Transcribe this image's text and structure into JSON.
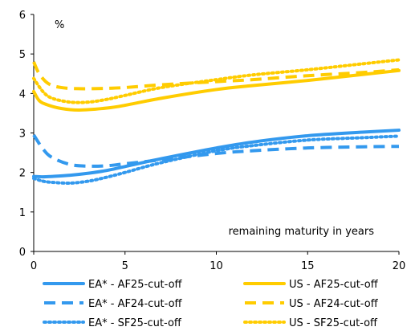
{
  "chart_data": {
    "type": "line",
    "y_unit_label": "%",
    "x_annotation": "remaining maturity in years",
    "xlim": [
      0,
      20
    ],
    "ylim": [
      0,
      6
    ],
    "x_ticks": [
      0,
      5,
      10,
      15,
      20
    ],
    "y_ticks": [
      0,
      1,
      2,
      3,
      4,
      5,
      6
    ],
    "grid": false,
    "legend_position": "bottom",
    "series": [
      {
        "name": "EA* - AF25-cut-off",
        "color": "#3399ee",
        "dash": "solid",
        "x": [
          0,
          0.5,
          1,
          2,
          3,
          4,
          5,
          7,
          10,
          12,
          15,
          18,
          20
        ],
        "y": [
          1.9,
          1.89,
          1.9,
          1.93,
          1.98,
          2.05,
          2.15,
          2.35,
          2.62,
          2.77,
          2.93,
          3.02,
          3.07
        ]
      },
      {
        "name": "EA* - AF24-cut-off",
        "color": "#3399ee",
        "dash": "dashed",
        "x": [
          0,
          0.5,
          1,
          2,
          3,
          4,
          5,
          7,
          10,
          12,
          15,
          18,
          20
        ],
        "y": [
          2.95,
          2.6,
          2.38,
          2.2,
          2.16,
          2.17,
          2.22,
          2.32,
          2.48,
          2.55,
          2.62,
          2.65,
          2.66
        ]
      },
      {
        "name": "EA* - SF25-cut-off",
        "color": "#3399ee",
        "dash": "dotted",
        "x": [
          0,
          0.5,
          1,
          2,
          3,
          4,
          5,
          7,
          10,
          12,
          15,
          18,
          20
        ],
        "y": [
          1.85,
          1.78,
          1.75,
          1.73,
          1.78,
          1.88,
          2.0,
          2.25,
          2.55,
          2.68,
          2.82,
          2.88,
          2.92
        ]
      },
      {
        "name": "US - AF25-cut-off",
        "color": "#ffcc00",
        "dash": "solid",
        "x": [
          0,
          0.3,
          0.7,
          1.5,
          2.5,
          4,
          5,
          7,
          10,
          12,
          15,
          18,
          20
        ],
        "y": [
          4.05,
          3.82,
          3.72,
          3.62,
          3.58,
          3.63,
          3.7,
          3.88,
          4.1,
          4.2,
          4.33,
          4.48,
          4.58
        ]
      },
      {
        "name": "US - AF24-cut-off",
        "color": "#ffcc00",
        "dash": "dashed",
        "x": [
          0,
          0.3,
          0.8,
          1.5,
          2.5,
          4,
          5,
          7,
          10,
          12,
          15,
          18,
          20
        ],
        "y": [
          4.8,
          4.5,
          4.25,
          4.15,
          4.12,
          4.13,
          4.15,
          4.22,
          4.3,
          4.35,
          4.45,
          4.53,
          4.6
        ]
      },
      {
        "name": "US - SF25-cut-off",
        "color": "#ffcc00",
        "dash": "dotted",
        "x": [
          0,
          0.5,
          1,
          2,
          3,
          4,
          5,
          7,
          10,
          12,
          15,
          18,
          20
        ],
        "y": [
          4.38,
          4.05,
          3.88,
          3.78,
          3.78,
          3.85,
          3.95,
          4.15,
          4.35,
          4.47,
          4.6,
          4.75,
          4.85
        ]
      }
    ]
  }
}
